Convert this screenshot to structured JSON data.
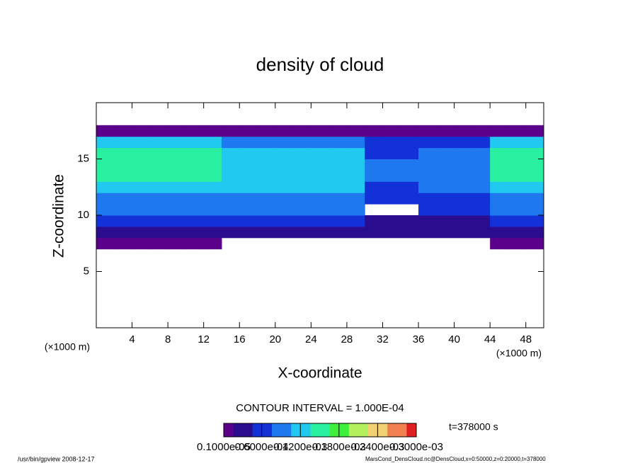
{
  "chart_data": {
    "type": "shaded-contour",
    "title": "density of cloud",
    "x_label": "X-coordinate",
    "y_label": "Z-coordinate",
    "x_unit_label": "(×1000 m)",
    "y_unit_label": "(×1000 m)",
    "contour_note": "CONTOUR INTERVAL = 1.000E-04",
    "time_label": "t=378000 s",
    "footer_left": "/usr/bin/gpview  2008-12-17",
    "footer_right": "MarsCond_DensCloud.nc@DensCloud,x=0:50000,z=0:20000,t=378000",
    "xlim": [
      0,
      50
    ],
    "ylim": [
      0,
      20
    ],
    "xticks": [
      4,
      8,
      12,
      16,
      20,
      24,
      28,
      32,
      36,
      40,
      44,
      48
    ],
    "yticks": [
      5,
      10,
      15
    ],
    "x": [
      1,
      3,
      5,
      7,
      9,
      11,
      13,
      15,
      17,
      19,
      21,
      23,
      25,
      27,
      29,
      31,
      33,
      35,
      37,
      39,
      41,
      43,
      45,
      47,
      49
    ],
    "z": [
      7.5,
      8.5,
      9.5,
      10.5,
      11.5,
      12.5,
      13.5,
      14.5,
      15.5,
      16.5,
      17.5
    ],
    "field": [
      [
        1e-05,
        3e-05,
        5e-05,
        8e-05,
        0.0001,
        0.00013,
        0.00014,
        0.00015,
        0.00014,
        0.00012,
        1e-05
      ],
      [
        1e-05,
        3e-05,
        5e-05,
        8e-05,
        0.0001,
        0.00013,
        0.00014,
        0.00015,
        0.00014,
        0.00012,
        1e-05
      ],
      [
        1e-05,
        3e-05,
        5e-05,
        8e-05,
        0.0001,
        0.00013,
        0.00014,
        0.00015,
        0.00014,
        0.00012,
        1e-05
      ],
      [
        1e-05,
        3e-05,
        5e-05,
        8e-05,
        0.0001,
        0.00013,
        0.00014,
        0.00015,
        0.00014,
        0.00012,
        1e-05
      ],
      [
        1e-05,
        3e-05,
        5e-05,
        8e-05,
        0.0001,
        0.00013,
        0.00014,
        0.00015,
        0.00014,
        0.00012,
        1e-05
      ],
      [
        1e-05,
        3e-05,
        5e-05,
        8e-05,
        0.0001,
        0.00013,
        0.00014,
        0.00015,
        0.00014,
        0.00012,
        1e-05
      ],
      [
        1e-05,
        3e-05,
        5e-05,
        8e-05,
        0.0001,
        0.00013,
        0.00014,
        0.00015,
        0.00014,
        0.00012,
        1e-05
      ],
      [
        null,
        3e-05,
        5e-05,
        8e-05,
        0.0001,
        0.00011,
        0.00012,
        0.00012,
        0.00011,
        0.0001,
        1e-05
      ],
      [
        null,
        3e-05,
        5e-05,
        8e-05,
        0.0001,
        0.00011,
        0.00012,
        0.00012,
        0.00011,
        0.0001,
        1e-05
      ],
      [
        null,
        3e-05,
        5e-05,
        8e-05,
        0.0001,
        0.00011,
        0.00012,
        0.00012,
        0.00011,
        0.0001,
        1e-05
      ],
      [
        null,
        3e-05,
        5e-05,
        8e-05,
        0.0001,
        0.00011,
        0.00012,
        0.00012,
        0.00011,
        0.0001,
        1e-05
      ],
      [
        null,
        3e-05,
        5e-05,
        8e-05,
        0.0001,
        0.00011,
        0.00012,
        0.00012,
        0.00011,
        0.0001,
        1e-05
      ],
      [
        null,
        3e-05,
        5e-05,
        8e-05,
        0.0001,
        0.00011,
        0.00012,
        0.00012,
        0.00011,
        0.0001,
        1e-05
      ],
      [
        null,
        3e-05,
        5e-05,
        8e-05,
        0.0001,
        0.00011,
        0.00012,
        0.00012,
        0.00011,
        0.0001,
        1e-05
      ],
      [
        null,
        3e-05,
        5e-05,
        8e-05,
        0.0001,
        0.00011,
        0.00012,
        0.00012,
        0.00011,
        0.0001,
        1e-05
      ],
      [
        null,
        3e-05,
        4e-05,
        null,
        6e-05,
        7e-05,
        8e-05,
        8e-05,
        7e-05,
        6e-05,
        1e-05
      ],
      [
        null,
        3e-05,
        4e-05,
        null,
        6e-05,
        7e-05,
        8e-05,
        8e-05,
        7e-05,
        6e-05,
        1e-05
      ],
      [
        null,
        3e-05,
        4e-05,
        null,
        6e-05,
        7e-05,
        8e-05,
        8e-05,
        7e-05,
        6e-05,
        1e-05
      ],
      [
        null,
        2e-05,
        4e-05,
        5e-05,
        7e-05,
        8e-05,
        9e-05,
        9e-05,
        8e-05,
        7e-05,
        1e-05
      ],
      [
        null,
        2e-05,
        4e-05,
        5e-05,
        7e-05,
        8e-05,
        9e-05,
        9e-05,
        8e-05,
        7e-05,
        1e-05
      ],
      [
        null,
        2e-05,
        4e-05,
        5e-05,
        7e-05,
        8e-05,
        9e-05,
        9e-05,
        8e-05,
        7e-05,
        1e-05
      ],
      [
        null,
        2e-05,
        4e-05,
        5e-05,
        7e-05,
        8e-05,
        9e-05,
        9e-05,
        8e-05,
        7e-05,
        1e-05
      ],
      [
        1e-05,
        3e-05,
        5e-05,
        8e-05,
        0.0001,
        0.00013,
        0.00014,
        0.00015,
        0.00014,
        0.00012,
        1e-05
      ],
      [
        1e-05,
        3e-05,
        5e-05,
        8e-05,
        0.0001,
        0.00013,
        0.00014,
        0.00015,
        0.00014,
        0.00012,
        1e-05
      ],
      [
        1e-05,
        3e-05,
        5e-05,
        8e-05,
        0.0001,
        0.00013,
        0.00014,
        0.00015,
        0.00014,
        0.00012,
        1e-05
      ]
    ],
    "colormap": [
      "#5a008a",
      "#2a0d8f",
      "#1232d8",
      "#1e78f0",
      "#21c8f0",
      "#28f0a0",
      "#3cf03c",
      "#b4f05a",
      "#f0d070",
      "#f08050",
      "#e02020"
    ],
    "colorbar_lim": [
      1e-06,
      0.0003
    ],
    "colorbar_ticks": [
      {
        "value": 1e-06,
        "label": "0.1000e-05"
      },
      {
        "value": 6e-05,
        "label": "0.6000e-04"
      },
      {
        "value": 0.00012,
        "label": "0.1200e-03"
      },
      {
        "value": 0.00018,
        "label": "0.1800e-03"
      },
      {
        "value": 0.00024,
        "label": "0.2400e-03"
      },
      {
        "value": 0.0003,
        "label": "0.3000e-03"
      }
    ]
  }
}
